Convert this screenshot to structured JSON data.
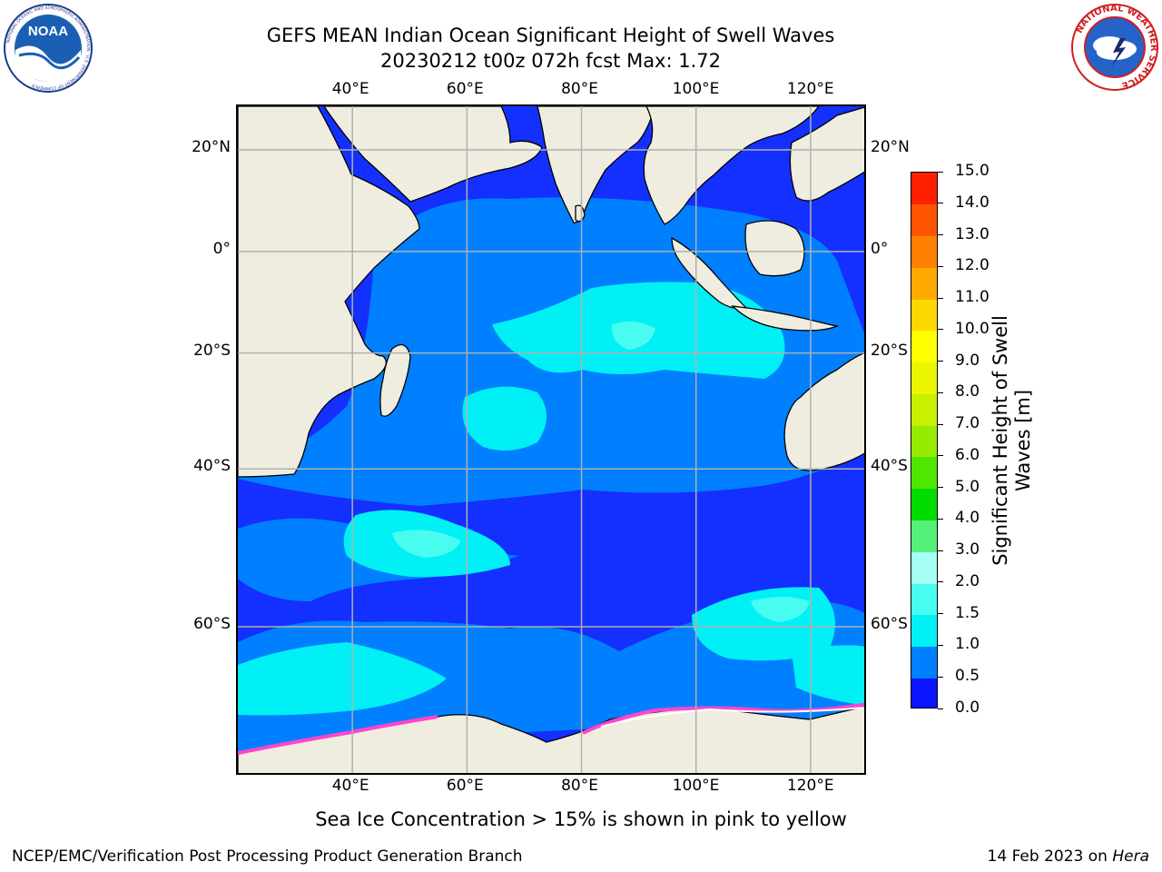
{
  "title": {
    "line1": "GEFS MEAN Indian Ocean Significant Height of Swell Waves",
    "line2": "20230212 t00z 072h fcst   Max: 1.72"
  },
  "map": {
    "region": "Indian Ocean",
    "lon_ticks": [
      "40°E",
      "60°E",
      "80°E",
      "100°E",
      "120°E"
    ],
    "lat_ticks": [
      "20°N",
      "0°",
      "20°S",
      "40°S",
      "60°S"
    ],
    "lon_range": [
      20,
      130
    ],
    "lat_range": [
      -72,
      28
    ]
  },
  "colorbar": {
    "label_line1": "Significant Height of Swell",
    "label_line2": "Waves [m]",
    "ticks": [
      "0.0",
      "0.5",
      "1.0",
      "1.5",
      "2.0",
      "3.0",
      "4.0",
      "5.0",
      "6.0",
      "7.0",
      "8.0",
      "9.0",
      "10.0",
      "11.0",
      "12.0",
      "13.0",
      "14.0",
      "15.0"
    ],
    "colors": [
      "#0a14ff",
      "#0080ff",
      "#00f0f5",
      "#49fcf0",
      "#a6fff5",
      "#55f078",
      "#00dc00",
      "#50e600",
      "#96eb00",
      "#c8f000",
      "#ebf500",
      "#ffff00",
      "#ffd700",
      "#ffaa00",
      "#ff8000",
      "#ff5500",
      "#ff2000"
    ]
  },
  "ice_note": "Sea Ice Concentration > 15% is shown in pink to yellow",
  "footer": {
    "credit": "NCEP/EMC/Verification Post Processing Product Generation Branch",
    "date_prefix": "14 Feb 2023 on ",
    "machine": "Hera"
  },
  "logos": {
    "noaa": {
      "text": "NOAA",
      "ring_text": "NATIONAL OCEANIC AND ATMOSPHERIC ADMINISTRATION · U.S. DEPARTMENT OF COMMERCE"
    },
    "nws": {
      "ring_text": "NATIONAL WEATHER SERVICE"
    }
  },
  "colors": {
    "land": "#eeede0",
    "band_0_05": "#1430ff",
    "band_05_10": "#0080ff",
    "band_10_15": "#00f0f5",
    "band_15_20": "#49fcf0",
    "grid": "#b0b0b0",
    "ice": "#ff44cc"
  }
}
